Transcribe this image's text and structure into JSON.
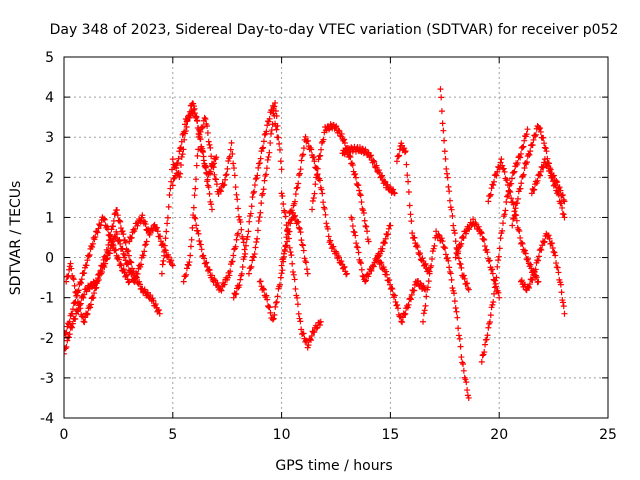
{
  "chart_data": {
    "type": "scatter",
    "title": "Day 348 of 2023, Sidereal Day-to-day VTEC variation (SDTVAR) for receiver p052",
    "xlabel": "GPS time / hours",
    "ylabel": "SDTVAR / TECUs",
    "xlim": [
      0,
      25
    ],
    "ylim": [
      -4,
      5
    ],
    "xticks": [
      0,
      5,
      10,
      15,
      20,
      25
    ],
    "yticks": [
      -4,
      -3,
      -2,
      -1,
      0,
      1,
      2,
      3,
      4,
      5
    ],
    "grid": true,
    "marker": "+",
    "series": [
      {
        "name": "SDTVAR",
        "color": "#ff0000",
        "tracks": [
          {
            "x": [
              0.0,
              0.3,
              0.7,
              1.0,
              1.5,
              2.0,
              2.4,
              2.8,
              3.2,
              3.6,
              4.0,
              4.4
            ],
            "y": [
              -2.4,
              -1.8,
              -1.2,
              -0.8,
              -0.6,
              0.2,
              1.2,
              0.4,
              -0.4,
              -0.8,
              -1.0,
              -1.4
            ]
          },
          {
            "x": [
              0.0,
              0.3,
              0.6,
              1.0,
              1.4,
              1.8,
              2.2,
              2.6,
              3.0
            ],
            "y": [
              -2.0,
              -1.5,
              -0.9,
              -0.2,
              0.5,
              1.0,
              0.4,
              -0.2,
              -0.6
            ]
          },
          {
            "x": [
              0.1,
              0.3,
              0.6,
              0.9,
              1.2,
              1.6,
              2.0,
              2.4,
              2.8,
              3.2,
              3.5,
              3.8
            ],
            "y": [
              -0.6,
              -0.2,
              -1.0,
              -1.6,
              -1.2,
              -0.5,
              0.0,
              0.6,
              0.0,
              -0.6,
              -0.2,
              0.4
            ]
          },
          {
            "x": [
              3.0,
              3.3,
              3.6,
              3.9,
              4.2,
              4.6,
              5.0
            ],
            "y": [
              0.4,
              0.8,
              1.0,
              0.6,
              0.8,
              0.2,
              -0.2
            ]
          },
          {
            "x": [
              4.5,
              4.7,
              5.0,
              5.3,
              5.6,
              5.9,
              6.2,
              6.5,
              6.8
            ],
            "y": [
              -0.4,
              0.6,
              2.4,
              2.0,
              3.2,
              3.9,
              3.2,
              2.2,
              1.2
            ]
          },
          {
            "x": [
              5.0,
              5.3,
              5.6,
              6.0,
              6.3,
              6.6,
              7.0
            ],
            "y": [
              1.8,
              2.6,
              3.4,
              3.7,
              2.8,
              2.0,
              2.5
            ]
          },
          {
            "x": [
              5.5,
              5.8,
              6.0,
              6.2,
              6.5,
              6.8,
              7.1,
              7.4,
              7.7,
              8.0,
              8.3
            ],
            "y": [
              -0.6,
              0.0,
              1.5,
              3.0,
              3.5,
              2.4,
              1.6,
              1.9,
              2.8,
              1.2,
              0.2
            ]
          },
          {
            "x": [
              6.0,
              6.4,
              6.8,
              7.2,
              7.6,
              8.0
            ],
            "y": [
              1.0,
              0.0,
              -0.5,
              -0.8,
              -0.4,
              0.6
            ]
          },
          {
            "x": [
              7.8,
              8.1,
              8.4,
              8.7,
              9.0,
              9.3,
              9.6,
              9.8
            ],
            "y": [
              -1.0,
              -0.6,
              0.4,
              1.6,
              2.4,
              3.2,
              3.8,
              3.0
            ]
          },
          {
            "x": [
              8.5,
              8.8,
              9.1,
              9.4,
              9.7,
              10.0
            ],
            "y": [
              -0.4,
              0.2,
              1.5,
              2.5,
              3.9,
              2.2
            ]
          },
          {
            "x": [
              9.0,
              9.3,
              9.6,
              10.0,
              10.4,
              10.8,
              11.2
            ],
            "y": [
              -0.6,
              -1.0,
              -1.6,
              -0.4,
              1.2,
              0.8,
              -0.4
            ]
          },
          {
            "x": [
              10.0,
              10.3,
              10.6,
              10.9,
              11.2,
              11.5,
              11.8
            ],
            "y": [
              1.6,
              0.6,
              -0.6,
              -1.8,
              -2.2,
              -1.8,
              -1.6
            ]
          },
          {
            "x": [
              10.0,
              10.4,
              10.8,
              11.1,
              11.4,
              11.8,
              12.2,
              12.6,
              13.0
            ],
            "y": [
              -0.2,
              0.8,
              2.0,
              3.0,
              2.6,
              1.8,
              0.4,
              0.0,
              -0.4
            ]
          },
          {
            "x": [
              11.4,
              11.7,
              12.0,
              12.4,
              12.8,
              13.2,
              13.6,
              14.0
            ],
            "y": [
              1.2,
              2.4,
              3.2,
              3.3,
              3.0,
              2.4,
              1.6,
              0.4
            ]
          },
          {
            "x": [
              12.8,
              13.2,
              13.6,
              14.0,
              14.4,
              14.8,
              15.2
            ],
            "y": [
              2.6,
              2.7,
              2.7,
              2.6,
              2.2,
              1.8,
              1.6
            ]
          },
          {
            "x": [
              13.2,
              13.5,
              13.8,
              14.2,
              14.6,
              15.0
            ],
            "y": [
              1.0,
              0.2,
              -0.6,
              -0.2,
              0.2,
              0.8
            ]
          },
          {
            "x": [
              14.4,
              14.8,
              15.2,
              15.5,
              15.8,
              16.2,
              16.6
            ],
            "y": [
              0.0,
              -0.4,
              -1.0,
              -1.6,
              -1.2,
              -0.6,
              -0.8
            ]
          },
          {
            "x": [
              15.3,
              15.5,
              15.7,
              16.0,
              16.4,
              16.8
            ],
            "y": [
              2.4,
              2.8,
              2.6,
              0.6,
              0.0,
              -0.4
            ]
          },
          {
            "x": [
              16.5,
              16.8,
              17.1,
              17.4,
              17.7,
              18.0,
              18.3,
              18.6
            ],
            "y": [
              -1.6,
              -0.4,
              0.6,
              0.4,
              -0.2,
              -1.2,
              -2.6,
              -3.5
            ]
          },
          {
            "x": [
              17.3,
              17.5,
              17.7,
              18.0,
              18.3,
              18.6
            ],
            "y": [
              4.2,
              2.6,
              1.6,
              0.4,
              -0.4,
              -0.8
            ]
          },
          {
            "x": [
              18.0,
              18.4,
              18.8,
              19.2,
              19.6,
              20.0
            ],
            "y": [
              0.0,
              0.6,
              0.9,
              0.6,
              -0.2,
              -1.0
            ]
          },
          {
            "x": [
              19.2,
              19.5,
              19.8,
              20.1,
              20.4,
              20.7,
              21.0,
              21.3
            ],
            "y": [
              -2.6,
              -1.8,
              -0.8,
              0.6,
              1.6,
              2.2,
              2.6,
              3.2
            ]
          },
          {
            "x": [
              19.5,
              19.8,
              20.1,
              20.4,
              20.7,
              21.0,
              21.4,
              21.8
            ],
            "y": [
              1.4,
              2.0,
              2.4,
              1.8,
              1.2,
              0.4,
              -0.2,
              -0.6
            ]
          },
          {
            "x": [
              20.6,
              20.9,
              21.2,
              21.5,
              21.8,
              22.1,
              22.4,
              22.7,
              23.0
            ],
            "y": [
              0.8,
              1.6,
              2.3,
              2.8,
              3.3,
              2.8,
              2.0,
              1.6,
              1.0
            ]
          },
          {
            "x": [
              21.0,
              21.3,
              21.6,
              21.9,
              22.2,
              22.5,
              22.8,
              23.0
            ],
            "y": [
              -0.6,
              -0.8,
              -0.4,
              0.2,
              0.6,
              0.2,
              -0.6,
              -1.4
            ]
          },
          {
            "x": [
              21.5,
              21.8,
              22.1,
              22.4,
              22.7,
              23.0
            ],
            "y": [
              1.6,
              2.0,
              2.4,
              2.1,
              1.8,
              1.4
            ]
          }
        ]
      }
    ]
  }
}
